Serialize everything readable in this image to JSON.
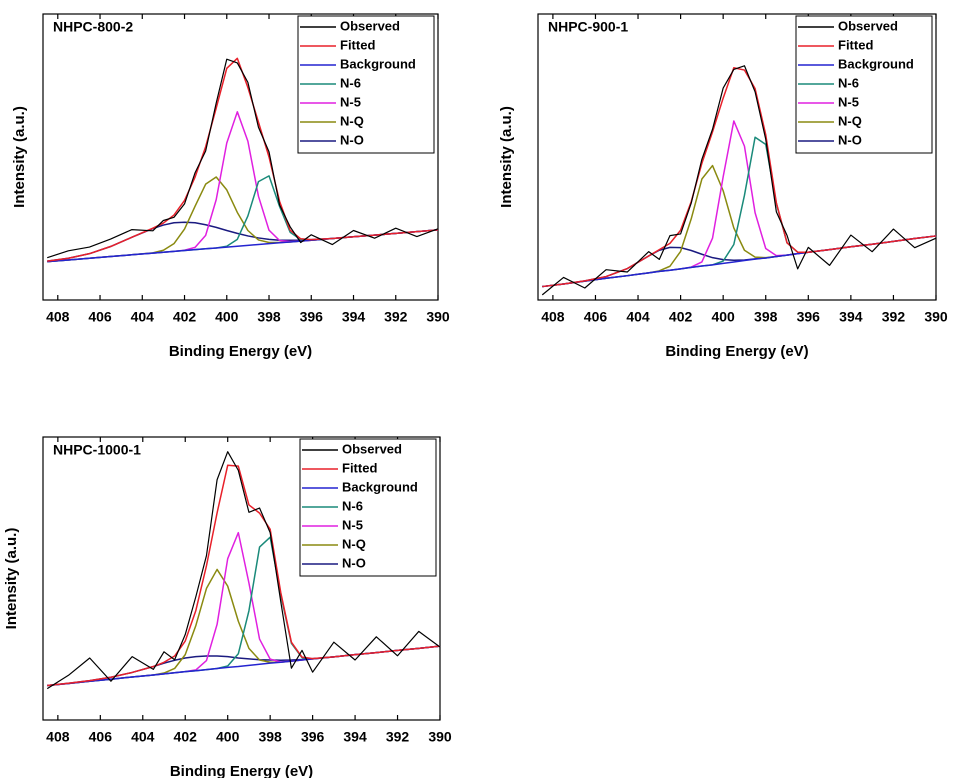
{
  "chart_data": [
    {
      "type": "line",
      "title": "NHPC-800-2",
      "xlabel": "Binding Energy (eV)",
      "ylabel": "Intensity (a.u.)",
      "legend": "upper right",
      "x": [
        408.5,
        407.5,
        406.5,
        405.5,
        404.5,
        403.5,
        403,
        402.5,
        402,
        401.5,
        401,
        400.5,
        400,
        399.5,
        399,
        398.5,
        398,
        397.5,
        397,
        396.5,
        396,
        395,
        394,
        393,
        392,
        391,
        390
      ],
      "xlim": [
        408.7,
        390
      ],
      "xticks": [
        408,
        406,
        404,
        402,
        400,
        398,
        396,
        394,
        392,
        390
      ],
      "ylim": [
        0,
        100
      ],
      "series": [
        {
          "name": "Observed",
          "color": "#000000",
          "values": [
            14.8,
            17.2,
            18.5,
            21.3,
            24.6,
            24.2,
            27.8,
            28.9,
            33.6,
            44.5,
            52.1,
            68.9,
            84.2,
            82.9,
            76.1,
            60.4,
            51.8,
            33.2,
            25.6,
            20.1,
            22.8,
            19.4,
            24.3,
            21.6,
            25.1,
            22.2,
            24.9
          ]
        },
        {
          "name": "Fitted",
          "color": "#e8202a",
          "values": [
            13.6,
            14.6,
            16.2,
            18.7,
            21.9,
            25.1,
            26.9,
            29.7,
            34.8,
            43.0,
            53.6,
            67.1,
            81.0,
            84.5,
            74.3,
            62.2,
            50.0,
            34.5,
            24.4,
            21.4,
            21.1,
            21.5,
            22.1,
            22.7,
            23.3,
            23.9,
            24.5
          ]
        },
        {
          "name": "Background",
          "color": "#2424d0",
          "values": [
            13.4,
            14.0,
            14.6,
            15.2,
            15.8,
            16.4,
            16.7,
            17.0,
            17.3,
            17.6,
            17.9,
            18.2,
            18.5,
            18.8,
            19.1,
            19.4,
            19.7,
            20.0,
            20.3,
            20.6,
            20.9,
            21.5,
            22.1,
            22.7,
            23.3,
            23.9,
            24.5
          ]
        },
        {
          "name": "N-6",
          "color": "#1a8a7a",
          "values": [
            13.4,
            14.0,
            14.6,
            15.2,
            15.8,
            16.4,
            16.7,
            17.0,
            17.3,
            17.6,
            17.9,
            18.2,
            18.8,
            21.2,
            29.4,
            41.4,
            43.4,
            32.7,
            23.7,
            21.1,
            20.9,
            21.5,
            22.1,
            22.7,
            23.3,
            23.9,
            24.5
          ]
        },
        {
          "name": "N-5",
          "color": "#e020e0",
          "values": [
            13.4,
            14.0,
            14.6,
            15.2,
            15.8,
            16.4,
            16.7,
            17.0,
            17.4,
            18.4,
            22.6,
            35.1,
            54.9,
            65.8,
            55.5,
            36.3,
            24.4,
            20.8,
            20.4,
            20.6,
            20.9,
            21.5,
            22.1,
            22.7,
            23.3,
            23.9,
            24.5
          ]
        },
        {
          "name": "N-Q",
          "color": "#8a8a10",
          "values": [
            13.4,
            14.0,
            14.6,
            15.2,
            15.8,
            16.5,
            17.4,
            19.7,
            24.8,
            32.8,
            40.5,
            43.0,
            38.5,
            30.6,
            24.3,
            21.0,
            20.1,
            20.1,
            20.3,
            20.6,
            20.9,
            21.5,
            22.1,
            22.7,
            23.3,
            23.9,
            24.5
          ]
        },
        {
          "name": "N-O",
          "color": "#1a1a80",
          "values": [
            13.6,
            14.6,
            16.2,
            18.7,
            21.9,
            25.0,
            26.2,
            27.0,
            27.2,
            27.0,
            26.3,
            25.4,
            24.3,
            23.3,
            22.4,
            21.7,
            21.2,
            20.9,
            20.9,
            20.9,
            21.1,
            21.5,
            22.1,
            22.7,
            23.3,
            23.9,
            24.5
          ]
        }
      ]
    },
    {
      "type": "line",
      "title": "NHPC-900-1",
      "xlabel": "Binding Energy (eV)",
      "ylabel": "Intensity (a.u.)",
      "legend": "upper right",
      "x": [
        408.5,
        407.5,
        406.5,
        405.5,
        404.5,
        403.5,
        403,
        402.5,
        402,
        401.5,
        401,
        400.5,
        400,
        399.5,
        399,
        398.5,
        398,
        397.5,
        397,
        396.5,
        396,
        395,
        394,
        393,
        392,
        391,
        390
      ],
      "xlim": [
        408.7,
        390
      ],
      "xticks": [
        408,
        406,
        404,
        402,
        400,
        398,
        396,
        394,
        392,
        390
      ],
      "ylim": [
        0,
        100
      ],
      "series": [
        {
          "name": "Observed",
          "color": "#000000",
          "values": [
            1.8,
            7.9,
            4.2,
            10.6,
            9.8,
            16.9,
            14.2,
            22.5,
            23.1,
            33.9,
            49.2,
            59.7,
            74.1,
            80.6,
            81.9,
            72.8,
            56.2,
            30.8,
            22.6,
            10.9,
            18.4,
            12.1,
            22.7,
            16.9,
            24.8,
            18.3,
            21.6
          ]
        },
        {
          "name": "Fitted",
          "color": "#e8202a",
          "values": [
            4.7,
            5.6,
            6.7,
            8.2,
            11.0,
            15.4,
            17.6,
            19.8,
            24.4,
            34.4,
            47.8,
            58.8,
            70.6,
            81.2,
            80.4,
            73.9,
            57.8,
            34.0,
            20.0,
            16.7,
            16.7,
            17.6,
            18.6,
            19.5,
            20.5,
            21.5,
            22.4
          ]
        },
        {
          "name": "Background",
          "color": "#2424d0",
          "values": [
            4.7,
            5.6,
            6.6,
            7.6,
            8.5,
            9.5,
            10.0,
            10.4,
            10.9,
            11.4,
            11.9,
            12.3,
            12.8,
            13.3,
            13.8,
            14.3,
            14.7,
            15.2,
            15.7,
            16.2,
            16.7,
            17.6,
            18.6,
            19.5,
            20.5,
            21.5,
            22.4
          ]
        },
        {
          "name": "N-6",
          "color": "#1a8a7a",
          "values": [
            4.7,
            5.6,
            6.6,
            7.6,
            8.5,
            9.5,
            10.0,
            10.4,
            10.9,
            11.4,
            11.9,
            12.3,
            13.6,
            19.4,
            36.6,
            56.9,
            54.4,
            33.7,
            20.0,
            16.7,
            16.7,
            17.6,
            18.6,
            19.5,
            20.5,
            21.5,
            22.4
          ]
        },
        {
          "name": "N-5",
          "color": "#e020e0",
          "values": [
            4.7,
            5.6,
            6.6,
            7.6,
            8.5,
            9.5,
            10.0,
            10.4,
            10.9,
            11.5,
            13.3,
            21.6,
            43.1,
            62.6,
            53.8,
            30.5,
            18.0,
            15.5,
            15.7,
            16.2,
            16.7,
            17.6,
            18.6,
            19.5,
            20.5,
            21.5,
            22.4
          ]
        },
        {
          "name": "N-Q",
          "color": "#8a8a10",
          "values": [
            4.7,
            5.6,
            6.6,
            7.6,
            8.5,
            9.5,
            10.2,
            11.8,
            17.0,
            28.4,
            42.3,
            47.0,
            38.2,
            25.2,
            17.4,
            15.0,
            14.8,
            15.2,
            15.7,
            16.2,
            16.7,
            17.6,
            18.6,
            19.5,
            20.5,
            21.5,
            22.4
          ]
        },
        {
          "name": "N-O",
          "color": "#1a1a80",
          "values": [
            4.7,
            5.6,
            6.7,
            8.2,
            11.0,
            15.4,
            17.4,
            18.4,
            18.3,
            17.3,
            16.0,
            14.8,
            14.1,
            13.9,
            14.0,
            14.4,
            14.7,
            15.2,
            15.7,
            16.2,
            16.7,
            17.6,
            18.6,
            19.5,
            20.5,
            21.5,
            22.4
          ]
        }
      ]
    },
    {
      "type": "line",
      "title": "NHPC-1000-1",
      "xlabel": "Binding Energy (eV)",
      "ylabel": "Intensity (a.u.)",
      "legend": "upper right",
      "x": [
        408.5,
        407.5,
        406.5,
        405.5,
        404.5,
        403.5,
        403,
        402.5,
        402,
        401.5,
        401,
        400.5,
        400,
        399.5,
        399,
        398.5,
        398,
        397.5,
        397,
        396.5,
        396,
        395,
        394,
        393,
        392,
        391,
        390
      ],
      "xlim": [
        408.7,
        390
      ],
      "xticks": [
        408,
        406,
        404,
        402,
        400,
        398,
        396,
        394,
        392,
        390
      ],
      "ylim": [
        0,
        100
      ],
      "series": [
        {
          "name": "Observed",
          "color": "#000000",
          "values": [
            11.1,
            15.8,
            21.9,
            13.7,
            22.4,
            17.9,
            24.1,
            21.3,
            30.2,
            43.6,
            58.1,
            84.9,
            94.8,
            88.2,
            73.4,
            74.9,
            66.2,
            41.8,
            18.3,
            24.6,
            16.9,
            27.5,
            21.2,
            29.4,
            22.7,
            31.3,
            25.8
          ]
        },
        {
          "name": "Fitted",
          "color": "#e8202a",
          "values": [
            12.2,
            13.0,
            13.9,
            15.1,
            16.8,
            18.9,
            20.4,
            22.6,
            27.9,
            38.7,
            54.5,
            73.2,
            90.0,
            89.7,
            76.0,
            73.1,
            67.4,
            45.0,
            27.5,
            22.2,
            21.7,
            22.3,
            23.1,
            23.8,
            24.6,
            25.3,
            26.1
          ]
        },
        {
          "name": "Background",
          "color": "#2424d0",
          "values": [
            12.2,
            12.9,
            13.7,
            14.4,
            15.2,
            15.9,
            16.3,
            16.7,
            17.1,
            17.4,
            17.8,
            18.2,
            18.6,
            18.9,
            19.3,
            19.7,
            20.1,
            20.4,
            20.8,
            21.2,
            21.6,
            22.3,
            23.1,
            23.8,
            24.6,
            25.3,
            26.1
          ]
        },
        {
          "name": "N-6",
          "color": "#1a8a7a",
          "values": [
            12.2,
            12.9,
            13.7,
            14.4,
            15.2,
            15.9,
            16.3,
            16.7,
            17.1,
            17.4,
            17.8,
            18.2,
            19.1,
            23.4,
            38.6,
            61.1,
            64.6,
            44.2,
            27.1,
            22.0,
            21.6,
            22.3,
            23.1,
            23.8,
            24.6,
            25.3,
            26.1
          ]
        },
        {
          "name": "N-5",
          "color": "#e020e0",
          "values": [
            12.2,
            12.9,
            13.7,
            14.4,
            15.2,
            15.9,
            16.3,
            16.7,
            17.1,
            17.7,
            21.0,
            33.8,
            57.0,
            66.2,
            48.4,
            28.6,
            21.5,
            20.5,
            20.8,
            21.2,
            21.6,
            22.3,
            23.1,
            23.8,
            24.6,
            25.3,
            26.1
          ]
        },
        {
          "name": "N-Q",
          "color": "#8a8a10",
          "values": [
            12.2,
            12.9,
            13.7,
            14.4,
            15.2,
            15.9,
            16.6,
            18.2,
            23.1,
            33.4,
            46.5,
            53.2,
            47.3,
            34.9,
            25.3,
            21.2,
            20.4,
            20.4,
            20.8,
            21.2,
            21.6,
            22.3,
            23.1,
            23.8,
            24.6,
            25.3,
            26.1
          ]
        },
        {
          "name": "N-O",
          "color": "#1a1a80",
          "values": [
            12.2,
            13.0,
            13.9,
            15.1,
            16.8,
            18.9,
            20.1,
            21.1,
            21.9,
            22.4,
            22.6,
            22.6,
            22.4,
            21.9,
            21.6,
            21.3,
            21.2,
            21.1,
            21.2,
            21.4,
            21.7,
            22.3,
            23.1,
            23.8,
            24.6,
            25.3,
            26.1
          ]
        }
      ]
    }
  ]
}
